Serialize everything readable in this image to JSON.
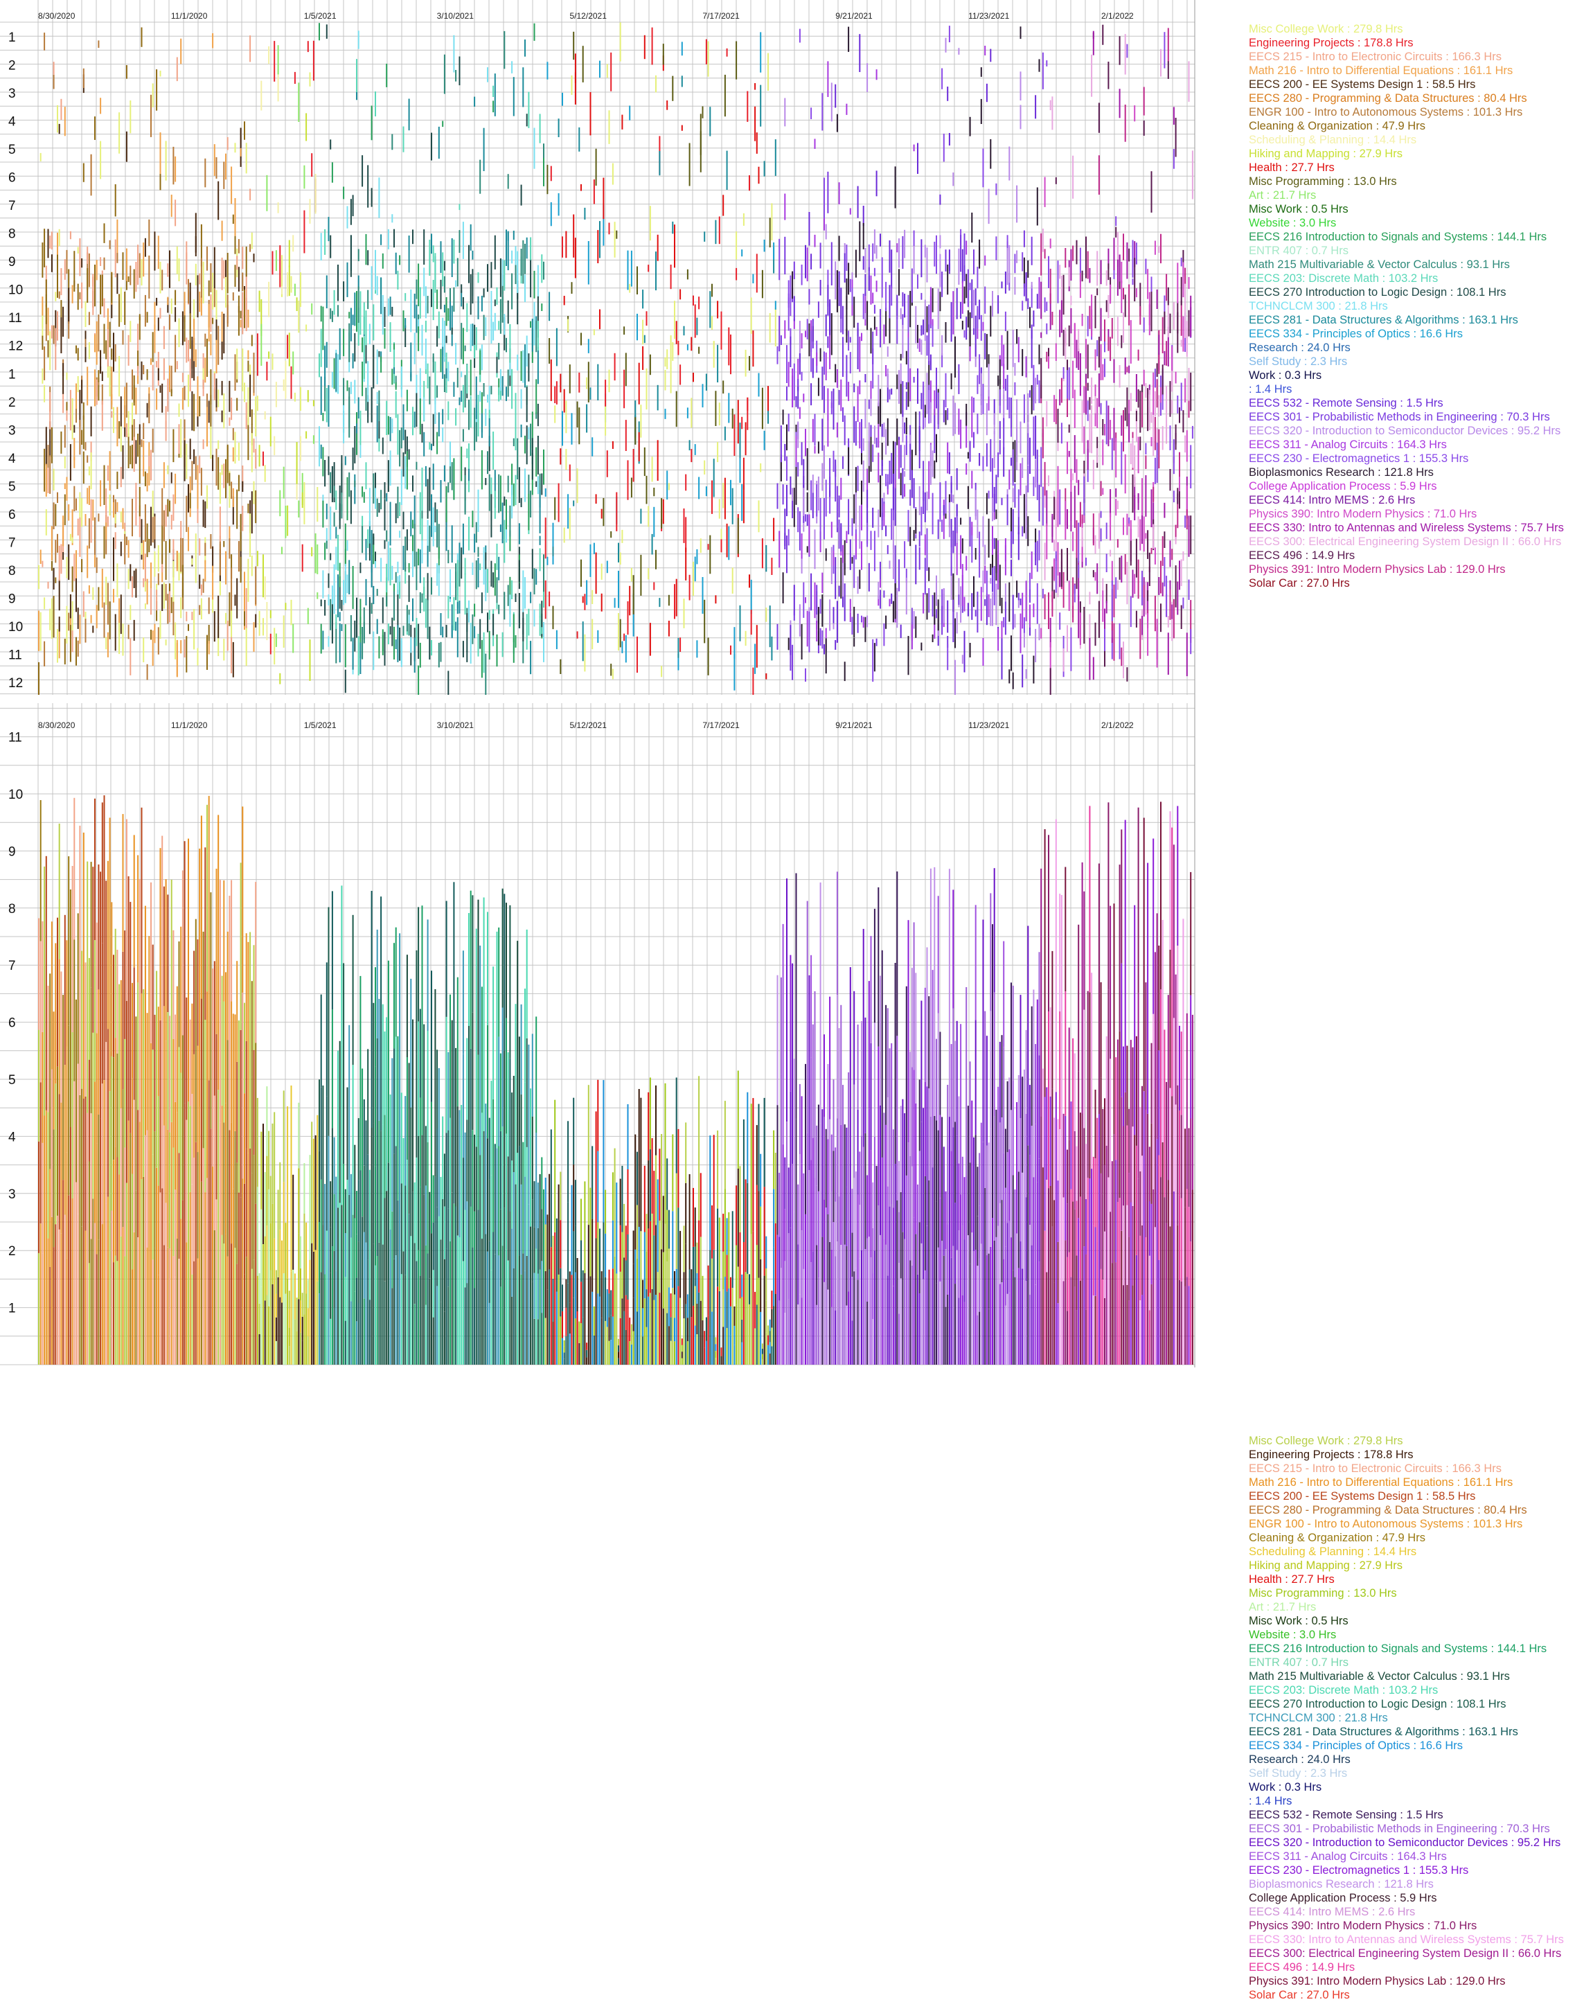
{
  "chart_data": [
    {
      "type": "heatmap",
      "title": "",
      "xlabel": "",
      "ylabel": "",
      "date_ticks": [
        "8/30/2020",
        "11/1/2020",
        "1/5/2021",
        "3/10/2021",
        "5/12/2021",
        "7/17/2021",
        "9/21/2021",
        "11/23/2021",
        "2/1/2022"
      ],
      "hour_ticks": [
        "1",
        "2",
        "3",
        "4",
        "5",
        "6",
        "7",
        "8",
        "9",
        "10",
        "11",
        "12",
        "1",
        "2",
        "3",
        "4",
        "5",
        "6",
        "7",
        "8",
        "9",
        "10",
        "11",
        "12"
      ],
      "grid": true,
      "legend_placement": "right",
      "legend": [
        {
          "name": "Misc College Work : 279.8 Hrs",
          "color": "#e6f07a"
        },
        {
          "name": "Engineering Projects : 178.8 Hrs",
          "color": "#e8212b"
        },
        {
          "name": "EECS 215 - Intro to Electronic Circuits : 166.3 Hrs",
          "color": "#f2a488"
        },
        {
          "name": "Math 216 - Intro to Differential Equations : 161.1 Hrs",
          "color": "#f0a24a"
        },
        {
          "name": "EECS 200 - EE Systems Design 1 : 58.5 Hrs",
          "color": "#4a2a12"
        },
        {
          "name": "EECS 280 - Programming & Data Structures : 80.4 Hrs",
          "color": "#d97d1e"
        },
        {
          "name": "ENGR 100 - Intro to Autonomous Systems : 101.3 Hrs",
          "color": "#b77a3a"
        },
        {
          "name": "Cleaning & Organization : 47.9 Hrs",
          "color": "#8f6a12"
        },
        {
          "name": "Scheduling & Planning : 14.4 Hrs",
          "color": "#f4f0a8"
        },
        {
          "name": "Hiking and Mapping : 27.9 Hrs",
          "color": "#c8e034"
        },
        {
          "name": "Health : 27.7 Hrs",
          "color": "#e01010"
        },
        {
          "name": "Misc Programming : 13.0 Hrs",
          "color": "#5c5c14"
        },
        {
          "name": "Art : 21.7 Hrs",
          "color": "#8ee86a"
        },
        {
          "name": "Misc Work : 0.5 Hrs",
          "color": "#1d6b12"
        },
        {
          "name": "Website : 3.0 Hrs",
          "color": "#36d636"
        },
        {
          "name": "EECS 216 Introduction to Signals and Systems : 144.1 Hrs",
          "color": "#27a05a"
        },
        {
          "name": "ENTR 407 : 0.7 Hrs",
          "color": "#a6e8c8"
        },
        {
          "name": "Math 215 Multivariable & Vector Calculus : 93.1 Hrs",
          "color": "#2e8a7a"
        },
        {
          "name": "EECS 203: Discrete Math : 103.2 Hrs",
          "color": "#5ad8b8"
        },
        {
          "name": "EECS 270 Introduction to Logic Design : 108.1 Hrs",
          "color": "#1f4a48"
        },
        {
          "name": "TCHNCLCM 300 : 21.8 Hrs",
          "color": "#7ae0f0"
        },
        {
          "name": "EECS 281 - Data Structures & Algorithms : 163.1 Hrs",
          "color": "#1a8a9a"
        },
        {
          "name": "EECS 334 - Principles of Optics : 16.6 Hrs",
          "color": "#1aa0d0"
        },
        {
          "name": "Research : 24.0 Hrs",
          "color": "#2a6ab0"
        },
        {
          "name": "Self Study : 2.3 Hrs",
          "color": "#80b8e8"
        },
        {
          "name": "Work : 0.3 Hrs",
          "color": "#12124a"
        },
        {
          "name": " : 1.4 Hrs",
          "color": "#3a52d8"
        },
        {
          "name": "EECS 532 - Remote Sensing : 1.5 Hrs",
          "color": "#6a2ad8"
        },
        {
          "name": "EECS 301 - Probabilistic Methods in Engineering : 70.3 Hrs",
          "color": "#7a3ae0"
        },
        {
          "name": "EECS 320 - Introduction to Semiconductor Devices : 95.2 Hrs",
          "color": "#b888e8"
        },
        {
          "name": "EECS 311 - Analog Circuits : 164.3 Hrs",
          "color": "#a838e0"
        },
        {
          "name": "EECS 230 - Electromagnetics 1 : 155.3 Hrs",
          "color": "#8a4ae8"
        },
        {
          "name": "Bioplasmonics Research : 121.8 Hrs",
          "color": "#2a1a30"
        },
        {
          "name": "College Application Process : 5.9 Hrs",
          "color": "#c838d8"
        },
        {
          "name": "EECS 414: Intro MEMS : 2.6 Hrs",
          "color": "#7a1aa0"
        },
        {
          "name": "Physics 390: Intro Modern Physics : 71.0 Hrs",
          "color": "#d048c8"
        },
        {
          "name": "EECS 330: Intro to Antennas and Wireless Systems : 75.7 Hrs",
          "color": "#a01aa8"
        },
        {
          "name": "EECS 300: Electrical Engineering System Design II : 66.0 Hrs",
          "color": "#e8a8e0"
        },
        {
          "name": "EECS 496 : 14.9 Hrs",
          "color": "#5a1a50"
        },
        {
          "name": "Physics 391: Intro Modern Physics Lab : 129.0 Hrs",
          "color": "#c0288a"
        },
        {
          "name": "Solar Car : 27.0 Hrs",
          "color": "#901020"
        }
      ]
    },
    {
      "type": "bar",
      "stacked": true,
      "title": "",
      "xlabel": "",
      "ylabel": "",
      "date_ticks": [
        "8/30/2020",
        "11/1/2020",
        "1/5/2021",
        "3/10/2021",
        "5/12/2021",
        "7/17/2021",
        "9/21/2021",
        "11/23/2021",
        "2/1/2022"
      ],
      "y_ticks": [
        "1",
        "2",
        "3",
        "4",
        "5",
        "6",
        "7",
        "8",
        "9",
        "10",
        "11"
      ],
      "ylim": [
        0,
        11.5
      ],
      "grid": true,
      "legend_placement": "right",
      "legend": [
        {
          "name": "Misc College Work : 279.8 Hrs",
          "color": "#b8d04a"
        },
        {
          "name": "Engineering Projects : 178.8 Hrs",
          "color": "#3a1a0a"
        },
        {
          "name": "EECS 215 - Intro to Electronic Circuits : 166.3 Hrs",
          "color": "#f2a488"
        },
        {
          "name": "Math 216 - Intro to Differential Equations : 161.1 Hrs",
          "color": "#e8901e"
        },
        {
          "name": "EECS 200 - EE Systems Design 1 : 58.5 Hrs",
          "color": "#b8441a"
        },
        {
          "name": "EECS 280 - Programming & Data Structures : 80.4 Hrs",
          "color": "#b8702a"
        },
        {
          "name": "ENGR 100 - Intro to Autonomous Systems : 101.3 Hrs",
          "color": "#e8962a"
        },
        {
          "name": "Cleaning & Organization : 47.9 Hrs",
          "color": "#9a7a12"
        },
        {
          "name": "Scheduling & Planning : 14.4 Hrs",
          "color": "#e8c830"
        },
        {
          "name": "Hiking and Mapping : 27.9 Hrs",
          "color": "#b8c81a"
        },
        {
          "name": "Health : 27.7 Hrs",
          "color": "#e01010"
        },
        {
          "name": "Misc Programming : 13.0 Hrs",
          "color": "#a0c81a"
        },
        {
          "name": "Art : 21.7 Hrs",
          "color": "#b8f0a0"
        },
        {
          "name": "Misc Work : 0.5 Hrs",
          "color": "#1a3a12"
        },
        {
          "name": "Website : 3.0 Hrs",
          "color": "#36c026"
        },
        {
          "name": "EECS 216 Introduction to Signals and Systems : 144.1 Hrs",
          "color": "#1aa064"
        },
        {
          "name": "ENTR 407 : 0.7 Hrs",
          "color": "#7ad8b0"
        },
        {
          "name": "Math 215 Multivariable & Vector Calculus : 93.1 Hrs",
          "color": "#1a4a3a"
        },
        {
          "name": "EECS 203: Discrete Math : 103.2 Hrs",
          "color": "#4ad8b0"
        },
        {
          "name": "EECS 270 Introduction to Logic Design : 108.1 Hrs",
          "color": "#1a5a4a"
        },
        {
          "name": "TCHNCLCM 300 : 21.8 Hrs",
          "color": "#3a9ab8"
        },
        {
          "name": "EECS 281 - Data Structures & Algorithms : 163.1 Hrs",
          "color": "#125a5a"
        },
        {
          "name": "EECS 334 - Principles of Optics : 16.6 Hrs",
          "color": "#1a90d8"
        },
        {
          "name": "Research : 24.0 Hrs",
          "color": "#1a3a5a"
        },
        {
          "name": "Self Study : 2.3 Hrs",
          "color": "#b8d0e8"
        },
        {
          "name": "Work : 0.3 Hrs",
          "color": "#12126a"
        },
        {
          "name": " : 1.4 Hrs",
          "color": "#2a42c8"
        },
        {
          "name": "EECS 532 - Remote Sensing : 1.5 Hrs",
          "color": "#3a1a5a"
        },
        {
          "name": "EECS 301 - Probabilistic Methods in Engineering : 70.3 Hrs",
          "color": "#a060d8"
        },
        {
          "name": "EECS 320 - Introduction to Semiconductor Devices : 95.2 Hrs",
          "color": "#6a12c8"
        },
        {
          "name": "EECS 311 - Analog Circuits : 164.3 Hrs",
          "color": "#a050e0"
        },
        {
          "name": "EECS 230 - Electromagnetics 1 : 155.3 Hrs",
          "color": "#8a1ad8"
        },
        {
          "name": "Bioplasmonics Research : 121.8 Hrs",
          "color": "#c090e8"
        },
        {
          "name": "College Application Process : 5.9 Hrs",
          "color": "#3a1a2a"
        },
        {
          "name": "EECS 414: Intro MEMS : 2.6 Hrs",
          "color": "#d090d8"
        },
        {
          "name": "Physics 390: Intro Modern Physics : 71.0 Hrs",
          "color": "#8a1a6a"
        },
        {
          "name": "EECS 330: Intro to Antennas and Wireless Systems : 75.7 Hrs",
          "color": "#f0a0e8"
        },
        {
          "name": "EECS 300: Electrical Engineering System Design II : 66.0 Hrs",
          "color": "#a01a90"
        },
        {
          "name": "EECS 496 : 14.9 Hrs",
          "color": "#e83aa0"
        },
        {
          "name": "Physics 391: Intro Modern Physics Lab : 129.0 Hrs",
          "color": "#7a123a"
        },
        {
          "name": "Solar Car : 27.0 Hrs",
          "color": "#e83a2a"
        }
      ]
    }
  ]
}
